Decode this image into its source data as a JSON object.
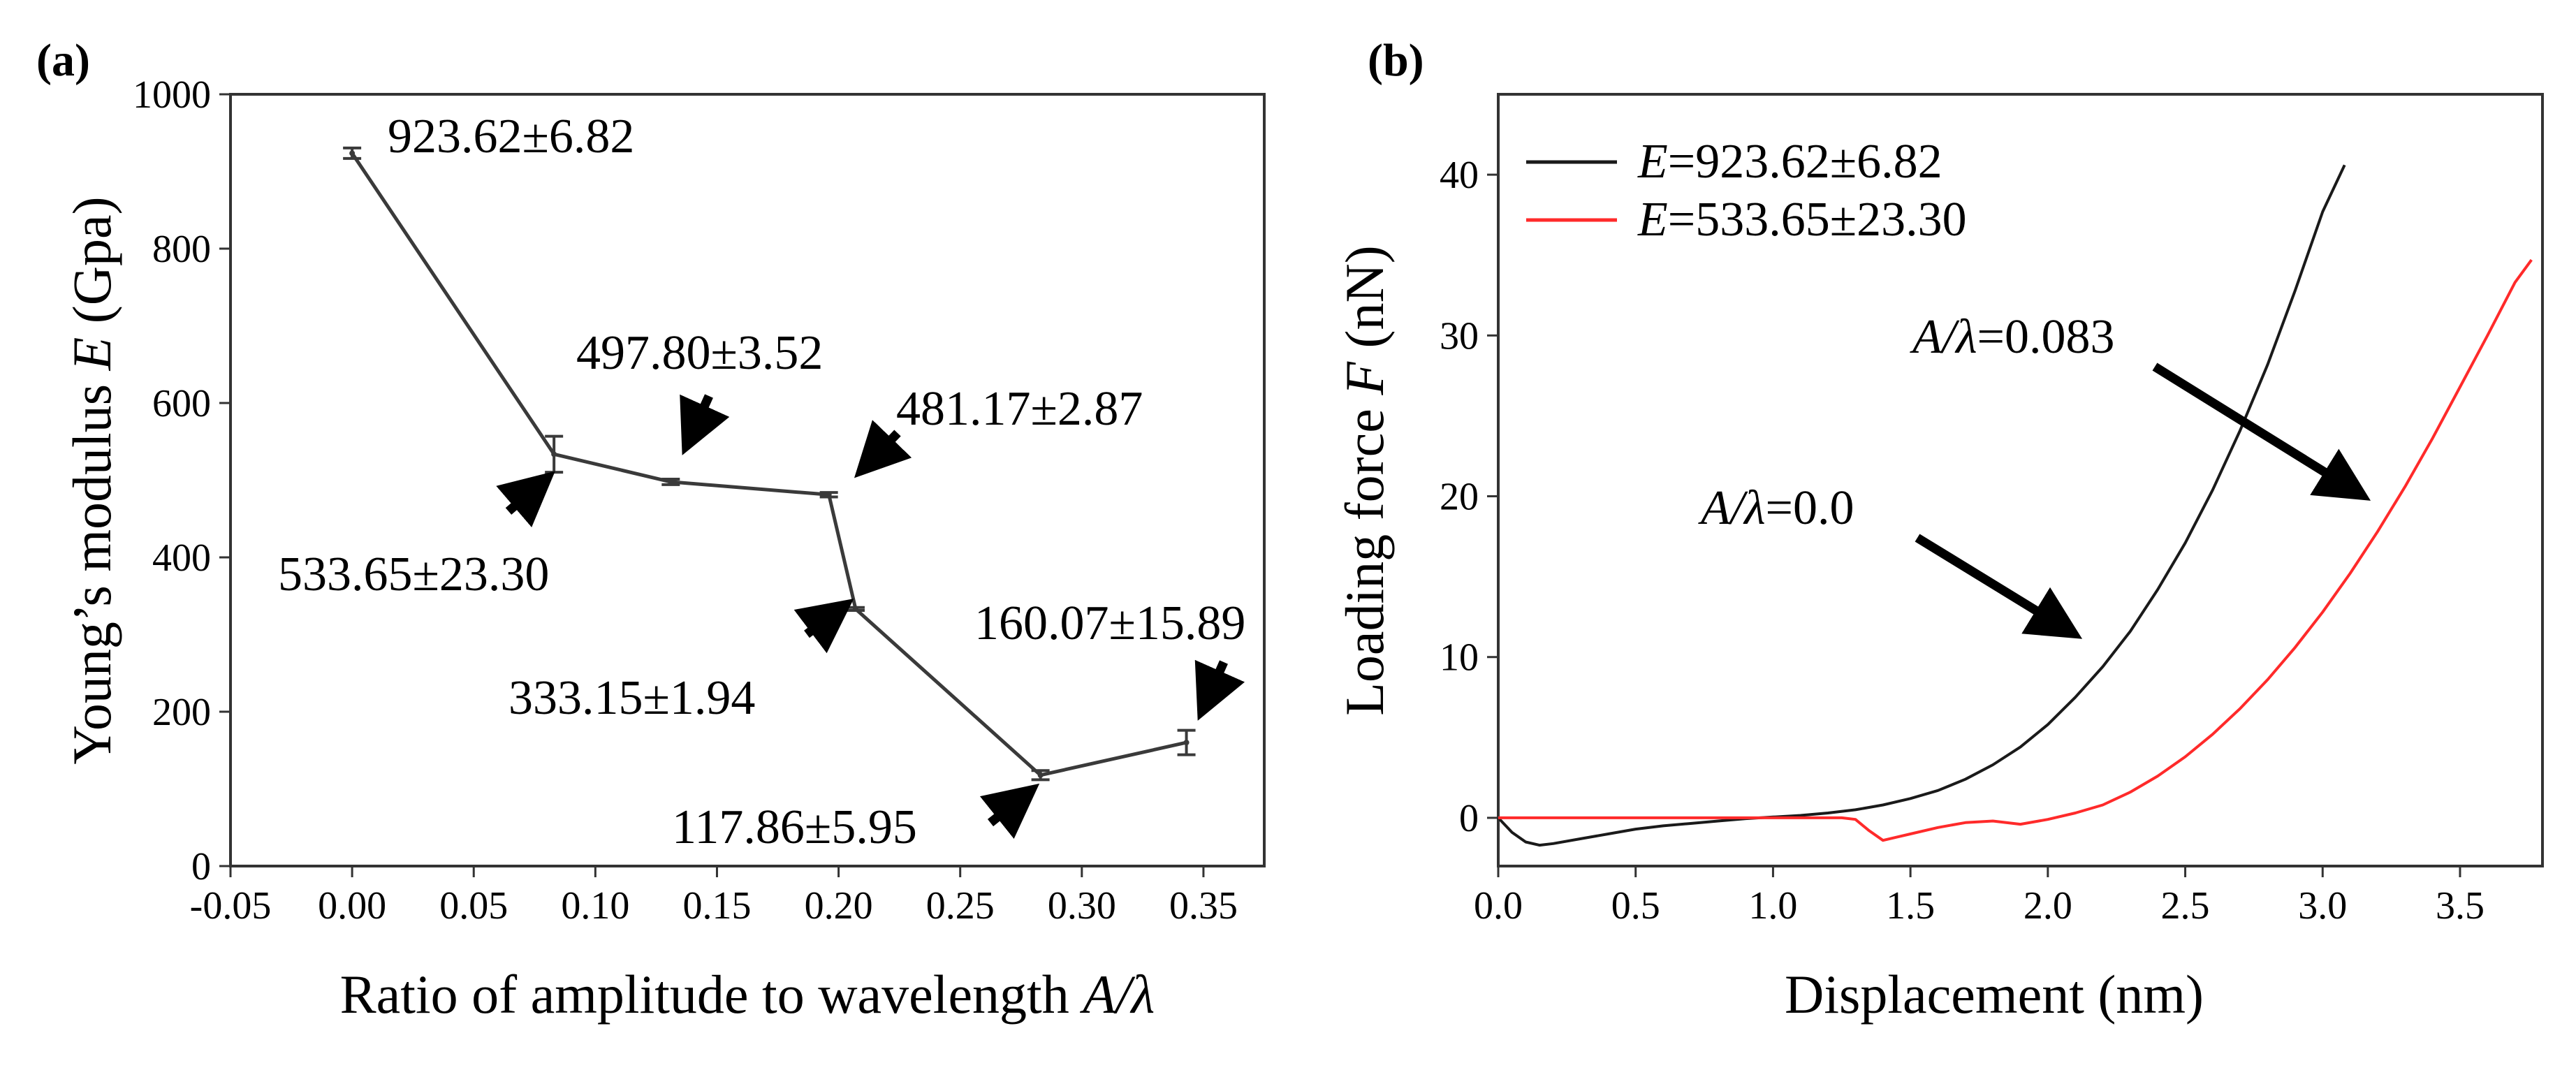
{
  "chart_data": [
    {
      "panel_label": "(a)",
      "type": "line",
      "xlabel_prefix": "Ratio of amplitude to wavelength ",
      "xlabel_italic": "A/λ",
      "ylabel_prefix": "Young’s modulus ",
      "ylabel_italic": "E",
      "ylabel_suffix": " (Gpa)",
      "xlim": [
        -0.05,
        0.375
      ],
      "ylim": [
        0,
        1000
      ],
      "xticks": [
        -0.05,
        0.0,
        0.05,
        0.1,
        0.15,
        0.2,
        0.25,
        0.3,
        0.35
      ],
      "xtick_labels": [
        "-0.05",
        "0.00",
        "0.05",
        "0.10",
        "0.15",
        "0.20",
        "0.25",
        "0.30",
        "0.35"
      ],
      "yticks": [
        0,
        200,
        400,
        600,
        800,
        1000
      ],
      "ytick_labels": [
        "0",
        "200",
        "400",
        "600",
        "800",
        "1000"
      ],
      "grid": false,
      "series": [
        {
          "name": "Young's modulus",
          "color": "#3a3a3a",
          "x": [
            0.0,
            0.083,
            0.131,
            0.196,
            0.207,
            0.283,
            0.343
          ],
          "y": [
            923.62,
            533.65,
            497.8,
            481.17,
            333.15,
            117.86,
            160.07
          ],
          "err": [
            6.82,
            23.3,
            3.52,
            2.87,
            1.94,
            5.95,
            15.89
          ]
        }
      ],
      "annotations": [
        "923.62±6.82",
        "533.65±23.30",
        "497.80±3.52",
        "481.17±2.87",
        "333.15±1.94",
        "117.86±5.95",
        "160.07±15.89"
      ]
    },
    {
      "panel_label": "(b)",
      "type": "line",
      "xlabel": "Displacement (nm)",
      "ylabel_prefix": "Loading force ",
      "ylabel_italic": "F",
      "ylabel_suffix": " (nN)",
      "xlim": [
        0,
        3.8
      ],
      "ylim": [
        -3,
        45
      ],
      "xticks": [
        0,
        0.5,
        1.0,
        1.5,
        2.0,
        2.5,
        3.0,
        3.5
      ],
      "xtick_labels": [
        "0.0",
        "0.5",
        "1.0",
        "1.5",
        "2.0",
        "2.5",
        "3.0",
        "3.5"
      ],
      "yticks": [
        0,
        10,
        20,
        30,
        40
      ],
      "ytick_labels": [
        "0",
        "10",
        "20",
        "30",
        "40"
      ],
      "grid": false,
      "legend_position": "top-left",
      "series": [
        {
          "legend_italic": "E",
          "legend_value": "=923.62±6.82",
          "color": "#1a1a1a",
          "x": [
            0.0,
            0.05,
            0.1,
            0.15,
            0.2,
            0.3,
            0.4,
            0.5,
            0.6,
            0.7,
            0.8,
            0.9,
            1.0,
            1.1,
            1.2,
            1.3,
            1.4,
            1.5,
            1.6,
            1.7,
            1.8,
            1.9,
            2.0,
            2.1,
            2.2,
            2.3,
            2.4,
            2.5,
            2.6,
            2.7,
            2.8,
            2.9,
            3.0,
            3.08
          ],
          "y": [
            0.0,
            -0.9,
            -1.5,
            -1.7,
            -1.6,
            -1.3,
            -1.0,
            -0.7,
            -0.5,
            -0.35,
            -0.2,
            -0.05,
            0.05,
            0.15,
            0.3,
            0.5,
            0.8,
            1.2,
            1.7,
            2.4,
            3.3,
            4.4,
            5.8,
            7.5,
            9.4,
            11.6,
            14.2,
            17.1,
            20.4,
            24.1,
            28.2,
            32.8,
            37.7,
            40.6
          ]
        },
        {
          "legend_italic": "E",
          "legend_value": "=533.65±23.30",
          "color": "#ff2a2a",
          "x": [
            0.0,
            0.5,
            1.0,
            1.25,
            1.3,
            1.35,
            1.4,
            1.45,
            1.5,
            1.6,
            1.7,
            1.8,
            1.9,
            2.0,
            2.1,
            2.2,
            2.3,
            2.4,
            2.5,
            2.6,
            2.7,
            2.8,
            2.9,
            3.0,
            3.1,
            3.2,
            3.3,
            3.4,
            3.5,
            3.6,
            3.7,
            3.76
          ],
          "y": [
            0.0,
            0.0,
            0.0,
            0.0,
            -0.1,
            -0.8,
            -1.4,
            -1.2,
            -1.0,
            -0.6,
            -0.3,
            -0.2,
            -0.4,
            -0.1,
            0.3,
            0.8,
            1.6,
            2.6,
            3.8,
            5.2,
            6.8,
            8.6,
            10.6,
            12.8,
            15.2,
            17.8,
            20.6,
            23.6,
            26.8,
            30.0,
            33.3,
            34.7
          ]
        }
      ],
      "annotations": [
        {
          "italic": "A/λ",
          "text": "=0.083"
        },
        {
          "italic": "A/λ",
          "text": "=0.0"
        }
      ]
    }
  ]
}
